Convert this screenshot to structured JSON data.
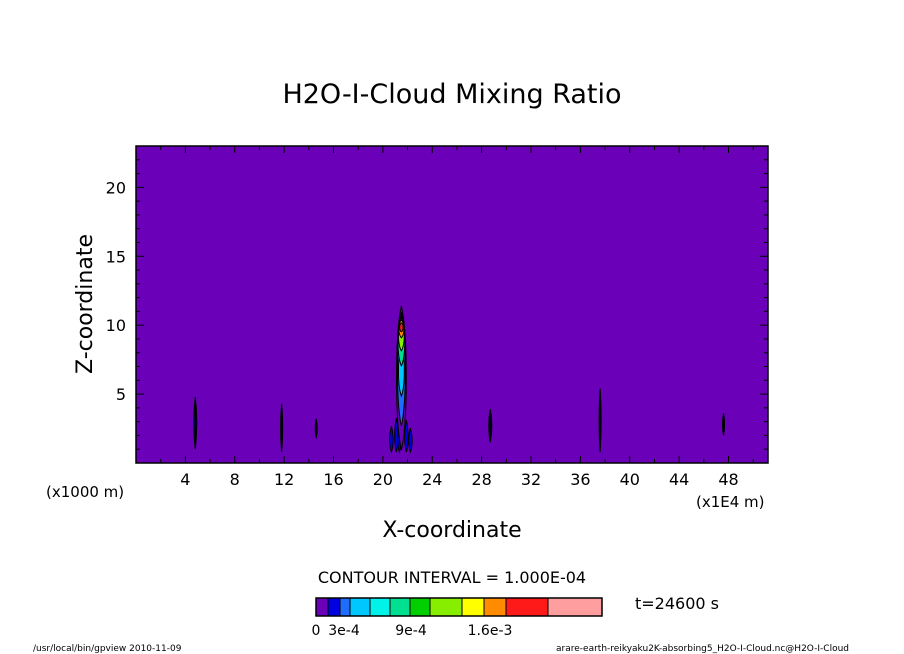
{
  "chart_data": {
    "type": "heatmap",
    "title": "H2O-I-Cloud Mixing Ratio",
    "xlabel": "X-coordinate",
    "ylabel": "Z-coordinate",
    "x_unit": "(x1E4 m)",
    "y_unit": "(x1000 m)",
    "xlim": [
      0,
      51.2
    ],
    "ylim": [
      0,
      23
    ],
    "x_ticks": [
      4,
      8,
      12,
      16,
      20,
      24,
      28,
      32,
      36,
      40,
      44,
      48
    ],
    "y_ticks": [
      5,
      10,
      15,
      20
    ],
    "background_value": 0,
    "contour_interval_text": "CONTOUR INTERVAL = 1.000E-04",
    "time_text": "t=24600 s",
    "colorbar": {
      "colors": [
        "#6a00b8",
        "#0000e0",
        "#1f6dff",
        "#00c8ff",
        "#00f2e8",
        "#00e090",
        "#00d000",
        "#88ee00",
        "#ffff00",
        "#ff8c00",
        "#ff1a1a",
        "#ff9e9e"
      ],
      "label_values": [
        "0",
        "3e-4",
        "9e-4",
        "1.6e-3"
      ]
    },
    "cloud_features": [
      {
        "x": 4.8,
        "z_bottom": 1.0,
        "z_top": 4.8,
        "max_value": 0.0001
      },
      {
        "x": 11.8,
        "z_bottom": 0.8,
        "z_top": 4.3,
        "max_value": 0.0001
      },
      {
        "x": 14.6,
        "z_bottom": 1.8,
        "z_top": 3.2,
        "max_value": 0.0001
      },
      {
        "x": 21.5,
        "z_bottom": 0.5,
        "z_top": 11.4,
        "max_value": 0.0018
      },
      {
        "x": 28.7,
        "z_bottom": 1.5,
        "z_top": 3.9,
        "max_value": 0.0001
      },
      {
        "x": 37.6,
        "z_bottom": 0.8,
        "z_top": 5.4,
        "max_value": 0.0001
      },
      {
        "x": 47.6,
        "z_bottom": 2.0,
        "z_top": 3.6,
        "max_value": 0.0001
      }
    ]
  },
  "footer": {
    "left": "/usr/local/bin/gpview  2010-11-09",
    "right": "arare-earth-reikyaku2K-absorbing5_H2O-I-Cloud.nc@H2O-I-Cloud"
  }
}
